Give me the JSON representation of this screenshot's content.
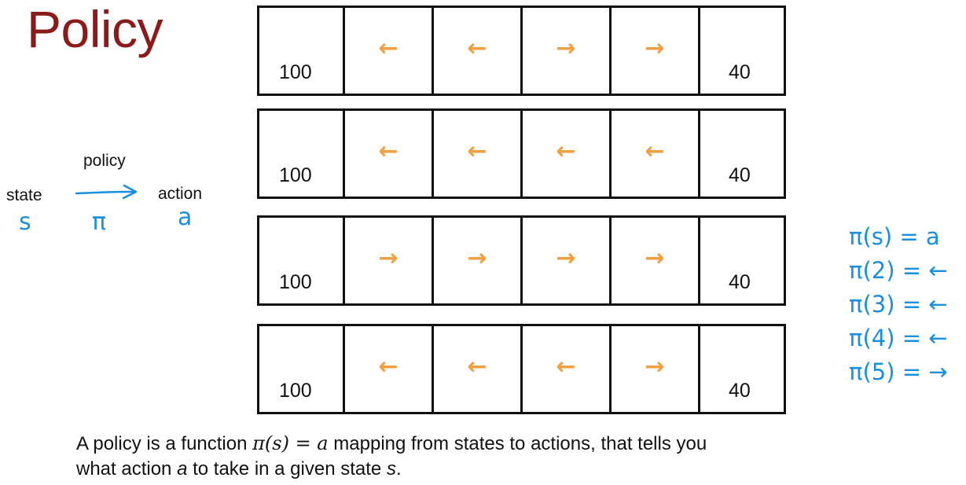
{
  "title": "Policy",
  "diagram": {
    "policy_label": "policy",
    "state_label": "state",
    "action_label": "action",
    "state_symbol": "s",
    "policy_symbol": "π",
    "action_symbol": "a"
  },
  "grid": {
    "left_reward": "100",
    "right_reward": "40",
    "arrow_color": "#f0a040",
    "rows": [
      {
        "arrows": [
          "←",
          "←",
          "→",
          "→"
        ]
      },
      {
        "arrows": [
          "←",
          "←",
          "←",
          "←"
        ]
      },
      {
        "arrows": [
          "→",
          "→",
          "→",
          "→"
        ]
      },
      {
        "arrows": [
          "←",
          "←",
          "←",
          "→"
        ]
      }
    ]
  },
  "equations": [
    "π(s) = a",
    "π(2) = ←",
    "π(3) = ←",
    "π(4) = ←",
    "π(5) = →"
  ],
  "caption": {
    "part1": "A policy is a function ",
    "math": "π(s) = a",
    "part2": " mapping from states to actions, that tells you",
    "part3": "what action ",
    "var_a": "a",
    "part4": " to take in a given state ",
    "var_s": "s",
    "part5": "."
  },
  "colors": {
    "title": "#8b1a1a",
    "ink_blue": "#1a8fe0",
    "arrow_orange": "#f0a040"
  }
}
